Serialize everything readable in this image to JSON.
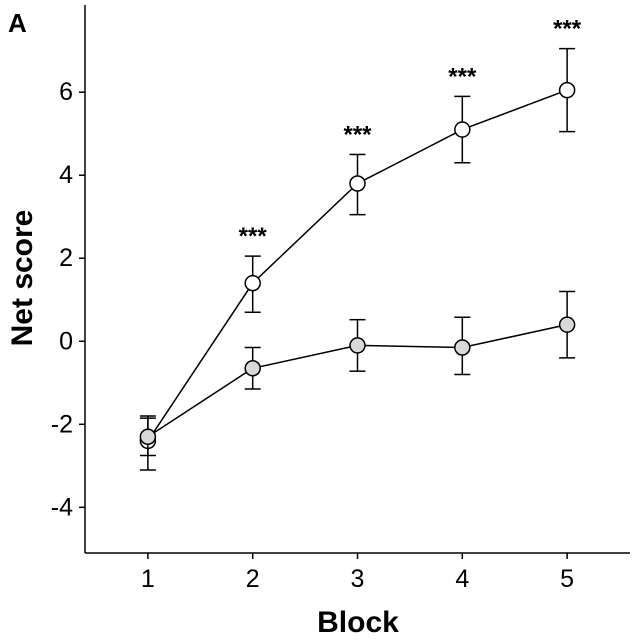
{
  "chart_data": {
    "type": "line",
    "panel_label": "A",
    "xlabel": "Block",
    "ylabel": "Net score",
    "x": [
      1,
      2,
      3,
      4,
      5
    ],
    "xticks": [
      "1",
      "2",
      "3",
      "4",
      "5"
    ],
    "xlim": [
      0.4,
      5.6
    ],
    "ylim": [
      -5.1,
      8.1
    ],
    "yticks": [
      -4,
      -2,
      0,
      2,
      4,
      6
    ],
    "ytick_labels": [
      "-4",
      "-2",
      "0",
      "2",
      "4",
      "6"
    ],
    "grid": false,
    "series": [
      {
        "marker_fill": "#ffffff",
        "values": [
          -2.4,
          1.4,
          3.8,
          5.1,
          6.05
        ],
        "err_low": [
          -3.1,
          0.7,
          3.05,
          4.3,
          5.05
        ],
        "err_high": [
          -1.8,
          2.05,
          4.5,
          5.9,
          7.05
        ]
      },
      {
        "marker_fill": "#d9d9d9",
        "values": [
          -2.3,
          -0.65,
          -0.1,
          -0.15,
          0.4
        ],
        "err_low": [
          -2.75,
          -1.15,
          -0.72,
          -0.8,
          -0.4
        ],
        "err_high": [
          -1.85,
          -0.15,
          0.52,
          0.58,
          1.2
        ]
      }
    ],
    "annotations": [
      {
        "x": 2,
        "y": 2.05,
        "text": "***"
      },
      {
        "x": 3,
        "y": 4.5,
        "text": "***"
      },
      {
        "x": 4,
        "y": 5.9,
        "text": "***"
      },
      {
        "x": 5,
        "y": 7.05,
        "text": "***"
      }
    ],
    "line_color": "#000000"
  }
}
